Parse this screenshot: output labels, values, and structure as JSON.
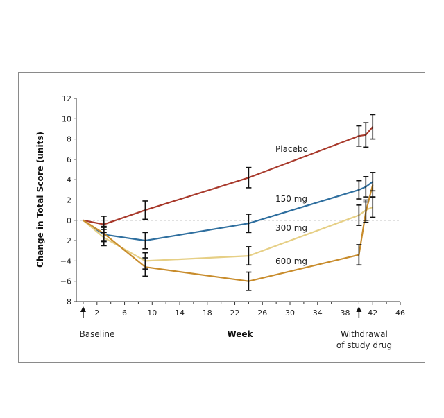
{
  "chart_data": {
    "type": "line",
    "title": "",
    "xlabel": "Week",
    "ylabel": "Change in Total Score  (units)",
    "xlim": [
      -1,
      46
    ],
    "ylim": [
      -8,
      12
    ],
    "xticks": [
      2,
      6,
      10,
      14,
      18,
      22,
      26,
      30,
      34,
      38,
      42,
      46
    ],
    "yticks": [
      -8,
      -6,
      -4,
      -2,
      0,
      2,
      4,
      6,
      8,
      10,
      12
    ],
    "reference_line": 0,
    "series": [
      {
        "name": "Placebo",
        "color": "#a8392b",
        "points": [
          {
            "x": 0,
            "y": 0
          },
          {
            "x": 3,
            "y": -0.4,
            "err": 0.8
          },
          {
            "x": 9,
            "y": 1.0,
            "err": 0.9
          },
          {
            "x": 24,
            "y": 4.2,
            "err": 1.0
          },
          {
            "x": 40,
            "y": 8.3,
            "err": 1.0
          },
          {
            "x": 41,
            "y": 8.4,
            "err": 1.2
          },
          {
            "x": 42,
            "y": 9.2,
            "err": 1.2
          }
        ]
      },
      {
        "name": "150 mg",
        "color": "#2f6f9f",
        "points": [
          {
            "x": 0,
            "y": 0
          },
          {
            "x": 3,
            "y": -1.4,
            "err": 0.7
          },
          {
            "x": 9,
            "y": -2.0,
            "err": 0.8
          },
          {
            "x": 24,
            "y": -0.3,
            "err": 0.9
          },
          {
            "x": 40,
            "y": 3.0,
            "err": 0.9
          },
          {
            "x": 41,
            "y": 3.3,
            "err": 1.0
          },
          {
            "x": 42,
            "y": 3.8,
            "err": 0.9
          }
        ]
      },
      {
        "name": "300 mg",
        "color": "#e6cf85",
        "points": [
          {
            "x": 0,
            "y": 0
          },
          {
            "x": 3,
            "y": -1.7,
            "err": 0.8
          },
          {
            "x": 9,
            "y": -4.0,
            "err": 0.8
          },
          {
            "x": 24,
            "y": -3.5,
            "err": 0.9
          },
          {
            "x": 40,
            "y": 0.5,
            "err": 1.0
          },
          {
            "x": 41,
            "y": 1.0,
            "err": 1.0
          },
          {
            "x": 42,
            "y": 1.3,
            "err": 1.0
          }
        ]
      },
      {
        "name": "600 mg",
        "color": "#c88c2c",
        "points": [
          {
            "x": 0,
            "y": 0
          },
          {
            "x": 3,
            "y": -1.3,
            "err": 0.7
          },
          {
            "x": 9,
            "y": -4.6,
            "err": 0.9
          },
          {
            "x": 24,
            "y": -6.0,
            "err": 0.9
          },
          {
            "x": 40,
            "y": -3.4,
            "err": 1.0
          },
          {
            "x": 41,
            "y": 0.8,
            "err": 1.0
          },
          {
            "x": 42,
            "y": 3.5,
            "err": 1.2
          }
        ]
      }
    ],
    "annotations": [
      {
        "text": "Baseline",
        "x": 0
      },
      {
        "text": "Withdrawal",
        "x": 40
      },
      {
        "text": "of study drug",
        "x": 40
      }
    ]
  }
}
